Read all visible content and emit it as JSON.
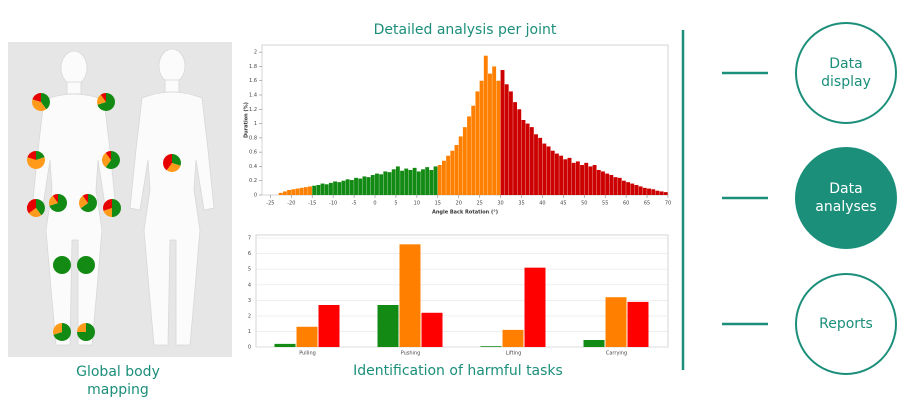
{
  "chart_data": [
    {
      "type": "histogram",
      "title": "Detailed analysis per joint",
      "x_label": "Angle Back Rotation (°)",
      "y_label": "Duration (%)",
      "xlim": [
        -27,
        70
      ],
      "xticks": [
        -25,
        -20,
        -15,
        -10,
        -5,
        0,
        5,
        10,
        15,
        20,
        25,
        30,
        35,
        40,
        45,
        50,
        55,
        60,
        65,
        70
      ],
      "ylim": [
        0,
        2.1
      ],
      "yticks": [
        0,
        0.2,
        0.4,
        0.6,
        0.8,
        1,
        1.2,
        1.4,
        1.6,
        1.8,
        2
      ],
      "grid": false,
      "series": [
        {
          "color": "#ff8000",
          "bins": [
            -23,
            -22,
            -21,
            -20,
            -19,
            -18,
            -17,
            -16,
            -15
          ],
          "values": [
            0.03,
            0.05,
            0.07,
            0.08,
            0.09,
            0.1,
            0.11,
            0.12
          ]
        },
        {
          "color": "#138a13",
          "bins": [
            -15,
            -14,
            -13,
            -12,
            -11,
            -10,
            -9,
            -8,
            -7,
            -6,
            -5,
            -4,
            -3,
            -2,
            -1,
            0,
            1,
            2,
            3,
            4,
            5,
            6,
            7,
            8,
            9,
            10,
            11,
            12,
            13,
            14,
            15
          ],
          "values": [
            0.13,
            0.14,
            0.16,
            0.15,
            0.17,
            0.19,
            0.18,
            0.2,
            0.22,
            0.21,
            0.24,
            0.23,
            0.26,
            0.25,
            0.28,
            0.3,
            0.29,
            0.33,
            0.32,
            0.36,
            0.4,
            0.34,
            0.37,
            0.35,
            0.38,
            0.33,
            0.36,
            0.39,
            0.35,
            0.4
          ]
        },
        {
          "color": "#ff8000",
          "bins": [
            15,
            16,
            17,
            18,
            19,
            20,
            21,
            22,
            23,
            24,
            25,
            26,
            27,
            28,
            29,
            30
          ],
          "values": [
            0.42,
            0.48,
            0.55,
            0.62,
            0.7,
            0.82,
            0.95,
            1.1,
            1.25,
            1.45,
            1.6,
            1.95,
            1.7,
            1.8,
            1.6
          ]
        },
        {
          "color": "#cc0000",
          "bins": [
            30,
            31,
            32,
            33,
            34,
            35,
            36,
            37,
            38,
            39,
            40,
            41,
            42,
            43,
            44,
            45,
            46,
            47,
            48,
            49,
            50,
            51,
            52,
            53,
            54,
            55,
            56,
            57,
            58,
            59,
            60,
            61,
            62,
            63,
            64,
            65,
            66,
            67,
            68,
            69,
            70
          ],
          "values": [
            1.75,
            1.55,
            1.45,
            1.3,
            1.2,
            1.05,
            1.0,
            0.95,
            0.85,
            0.8,
            0.72,
            0.68,
            0.62,
            0.58,
            0.55,
            0.5,
            0.52,
            0.45,
            0.47,
            0.42,
            0.45,
            0.4,
            0.42,
            0.35,
            0.33,
            0.3,
            0.28,
            0.25,
            0.24,
            0.2,
            0.18,
            0.16,
            0.14,
            0.12,
            0.1,
            0.09,
            0.08,
            0.06,
            0.05,
            0.04
          ]
        }
      ]
    },
    {
      "type": "bar",
      "title": "Identification of harmful tasks",
      "categories": [
        "Pulling",
        "Pushing",
        "Lifting",
        "Carrying"
      ],
      "ylim": [
        0,
        7.2
      ],
      "yticks": [
        0,
        1,
        2,
        3,
        4,
        5,
        6,
        7
      ],
      "grid": true,
      "series": [
        {
          "color": "#138a13",
          "values": [
            0.2,
            2.7,
            0.05,
            0.45
          ]
        },
        {
          "color": "#ff8000",
          "values": [
            1.3,
            6.6,
            1.1,
            3.2
          ]
        },
        {
          "color": "#ff0000",
          "values": [
            2.7,
            2.2,
            5.1,
            2.9
          ]
        }
      ]
    }
  ],
  "body_mapping": {
    "label": "Global body mapping",
    "colors": [
      "#138a13",
      "#ff9a1a",
      "#e60000"
    ],
    "joints": [
      {
        "values": [
          40,
          40,
          20
        ]
      },
      {
        "values": [
          70,
          20,
          10
        ]
      },
      {
        "values": [
          20,
          60,
          20
        ]
      },
      {
        "values": [
          60,
          30,
          10
        ]
      },
      {
        "values": [
          40,
          25,
          35
        ]
      },
      {
        "values": [
          70,
          20,
          10
        ]
      },
      {
        "values": [
          65,
          25,
          10
        ]
      },
      {
        "values": [
          50,
          20,
          30
        ]
      },
      {
        "values": [
          100,
          0,
          0
        ]
      },
      {
        "values": [
          100,
          0,
          0
        ]
      },
      {
        "values": [
          70,
          30,
          0
        ]
      },
      {
        "values": [
          75,
          25,
          0
        ]
      },
      {
        "values": [
          30,
          30,
          40
        ]
      }
    ]
  },
  "nav": [
    {
      "label": "Data display"
    },
    {
      "label": "Data analyses"
    },
    {
      "label": "Reports"
    }
  ]
}
